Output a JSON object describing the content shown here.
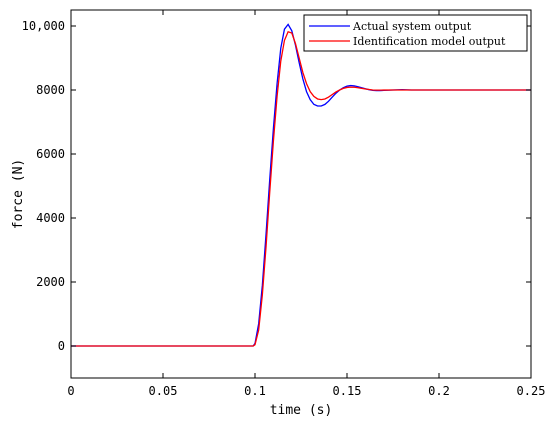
{
  "chart_data": {
    "type": "line",
    "xlabel": "time (s)",
    "ylabel": "force (N)",
    "xlim": [
      0,
      0.25
    ],
    "ylim": [
      -1000,
      10500
    ],
    "x_ticks": [
      0,
      0.05,
      0.1,
      0.15,
      0.2,
      0.25
    ],
    "x_tick_labels": [
      "0",
      "0.05",
      "0.1",
      "0.15",
      "0.2",
      "0.25"
    ],
    "y_ticks": [
      0,
      2000,
      4000,
      6000,
      8000,
      10000
    ],
    "y_tick_labels": [
      "0",
      "2000",
      "4000",
      "6000",
      "8000",
      "10,000"
    ],
    "grid": false,
    "legend_position": "top-right",
    "series": [
      {
        "name": "Actual system output",
        "color": "#0000ff",
        "x": [
          0,
          0.05,
          0.099,
          0.1,
          0.102,
          0.104,
          0.106,
          0.108,
          0.11,
          0.112,
          0.114,
          0.116,
          0.118,
          0.12,
          0.122,
          0.124,
          0.126,
          0.128,
          0.13,
          0.132,
          0.134,
          0.136,
          0.138,
          0.14,
          0.142,
          0.144,
          0.146,
          0.148,
          0.15,
          0.152,
          0.154,
          0.156,
          0.158,
          0.16,
          0.162,
          0.164,
          0.166,
          0.168,
          0.17,
          0.175,
          0.18,
          0.185,
          0.19,
          0.195,
          0.2,
          0.25
        ],
        "y": [
          0,
          0,
          0,
          80,
          700,
          1900,
          3500,
          5200,
          6800,
          8200,
          9300,
          9900,
          10050,
          9850,
          9400,
          8850,
          8350,
          7950,
          7700,
          7550,
          7500,
          7500,
          7550,
          7650,
          7780,
          7900,
          8000,
          8070,
          8120,
          8140,
          8130,
          8100,
          8070,
          8040,
          8010,
          7990,
          7980,
          7980,
          7990,
          8000,
          8010,
          8000,
          8000,
          8000,
          8000,
          8000
        ]
      },
      {
        "name": "Identification model output",
        "color": "#ff0000",
        "x": [
          0,
          0.05,
          0.099,
          0.1,
          0.102,
          0.104,
          0.106,
          0.108,
          0.11,
          0.112,
          0.114,
          0.116,
          0.118,
          0.12,
          0.122,
          0.124,
          0.126,
          0.128,
          0.13,
          0.132,
          0.134,
          0.136,
          0.138,
          0.14,
          0.142,
          0.144,
          0.146,
          0.148,
          0.15,
          0.152,
          0.154,
          0.156,
          0.158,
          0.16,
          0.162,
          0.164,
          0.166,
          0.168,
          0.17,
          0.175,
          0.18,
          0.185,
          0.19,
          0.195,
          0.2,
          0.25
        ],
        "y": [
          0,
          0,
          0,
          40,
          500,
          1600,
          3100,
          4800,
          6400,
          7800,
          8900,
          9550,
          9820,
          9780,
          9450,
          9000,
          8550,
          8200,
          7950,
          7800,
          7720,
          7700,
          7720,
          7780,
          7860,
          7940,
          8000,
          8050,
          8080,
          8090,
          8085,
          8070,
          8050,
          8030,
          8015,
          8000,
          7995,
          7995,
          7998,
          8000,
          8000,
          8000,
          8000,
          8000,
          8000,
          8000
        ]
      }
    ]
  }
}
